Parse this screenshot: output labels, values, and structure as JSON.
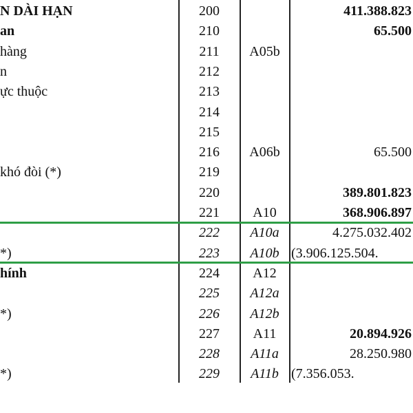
{
  "rows": [
    {
      "label": "N DÀI HẠN",
      "code": "200",
      "note": "",
      "amount": "411.388.823",
      "bold": true,
      "italic": false
    },
    {
      "label": "an",
      "code": "210",
      "note": "",
      "amount": "65.500",
      "bold": true,
      "italic": false
    },
    {
      "label": " hàng",
      "code": "211",
      "note": "A05b",
      "amount": "",
      "bold": false,
      "italic": false
    },
    {
      "label": "n",
      "code": "212",
      "note": "",
      "amount": "",
      "bold": false,
      "italic": false
    },
    {
      "label": "ực thuộc",
      "code": "213",
      "note": "",
      "amount": "",
      "bold": false,
      "italic": false
    },
    {
      "label": "",
      "code": "214",
      "note": "",
      "amount": "",
      "bold": false,
      "italic": false
    },
    {
      "label": "",
      "code": "215",
      "note": "",
      "amount": "",
      "bold": false,
      "italic": false
    },
    {
      "label": "",
      "code": "216",
      "note": "A06b",
      "amount": "65.500",
      "bold": false,
      "italic": false
    },
    {
      "label": " khó đòi (*)",
      "code": "219",
      "note": "",
      "amount": "",
      "bold": false,
      "italic": false
    },
    {
      "label": "",
      "code": "220",
      "note": "",
      "amount": "389.801.823",
      "bold": true,
      "italic": false
    },
    {
      "label": "",
      "code": "221",
      "note": "A10",
      "amount": "368.906.897",
      "bold": true,
      "italic": false
    },
    {
      "label": "",
      "code": "222",
      "note": "A10a",
      "amount": "4.275.032.402",
      "bold": false,
      "italic": true
    },
    {
      "label": "*)",
      "code": "223",
      "note": "A10b",
      "amount": "(3.906.125.504.",
      "bold": false,
      "italic": true
    },
    {
      "label": "hính",
      "code": "224",
      "note": "A12",
      "amount": "",
      "bold": true,
      "italic": false
    },
    {
      "label": "",
      "code": "225",
      "note": "A12a",
      "amount": "",
      "bold": false,
      "italic": true
    },
    {
      "label": "*)",
      "code": "226",
      "note": "A12b",
      "amount": "",
      "bold": false,
      "italic": true
    },
    {
      "label": "",
      "code": "227",
      "note": "A11",
      "amount": "20.894.926",
      "bold": true,
      "italic": false
    },
    {
      "label": "",
      "code": "228",
      "note": "A11a",
      "amount": "28.250.980",
      "bold": false,
      "italic": true
    },
    {
      "label": "*)",
      "code": "229",
      "note": "A11b",
      "amount": "(7.356.053.",
      "bold": false,
      "italic": true
    }
  ],
  "highlight_color": "#2e9e46",
  "highlighted_rows": [
    11,
    12
  ]
}
